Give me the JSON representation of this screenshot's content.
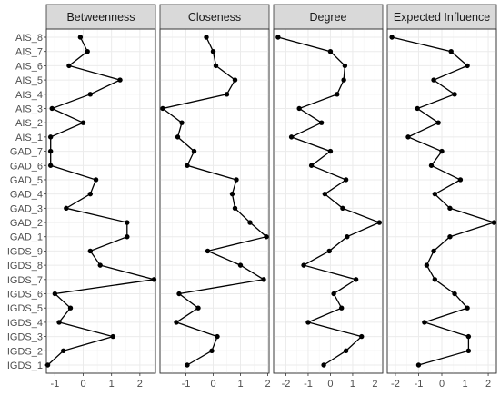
{
  "chart_data": {
    "type": "line",
    "layout": "faceted",
    "categories": [
      "IGDS_1",
      "IGDS_2",
      "IGDS_3",
      "IGDS_4",
      "IGDS_5",
      "IGDS_6",
      "IGDS_7",
      "IGDS_8",
      "IGDS_9",
      "GAD_1",
      "GAD_2",
      "GAD_3",
      "GAD_4",
      "GAD_5",
      "GAD_6",
      "GAD_7",
      "AIS_1",
      "AIS_2",
      "AIS_3",
      "AIS_4",
      "AIS_5",
      "AIS_6",
      "AIS_7",
      "AIS_8"
    ],
    "grid": true,
    "panels": [
      {
        "name": "Betweenness",
        "xlim": [
          -1.3,
          2.55
        ],
        "xticks": [
          -1,
          0,
          1,
          2
        ],
        "values": [
          -1.25,
          -0.7,
          1.05,
          -0.85,
          -0.45,
          -1.0,
          2.5,
          0.6,
          0.25,
          1.55,
          1.55,
          -0.6,
          0.25,
          0.45,
          -1.15,
          -1.15,
          -1.15,
          0.0,
          -1.1,
          0.25,
          1.3,
          -0.5,
          0.15,
          -0.1
        ]
      },
      {
        "name": "Closeness",
        "xlim": [
          -1.95,
          2.05
        ],
        "xticks": [
          -1,
          0,
          1,
          2
        ],
        "values": [
          -0.95,
          -0.05,
          0.15,
          -1.35,
          -0.55,
          -1.25,
          1.85,
          1.0,
          -0.2,
          1.95,
          1.35,
          0.8,
          0.7,
          0.85,
          -0.95,
          -0.7,
          -1.3,
          -1.15,
          -1.85,
          0.5,
          0.8,
          0.1,
          0.0,
          -0.25
        ]
      },
      {
        "name": "Degree",
        "xlim": [
          -2.55,
          2.35
        ],
        "xticks": [
          -2,
          -1,
          0,
          1,
          2
        ],
        "values": [
          -0.3,
          0.7,
          1.4,
          -1.0,
          0.5,
          0.15,
          1.15,
          -1.2,
          -0.05,
          0.75,
          2.2,
          0.55,
          -0.25,
          0.7,
          -0.85,
          0.0,
          -1.75,
          -0.4,
          -1.4,
          0.3,
          0.6,
          0.65,
          0.0,
          -2.35
        ]
      },
      {
        "name": "Expected Influence",
        "xlim": [
          -2.35,
          2.35
        ],
        "xticks": [
          -2,
          -1,
          0,
          1,
          2
        ],
        "values": [
          -1.0,
          1.15,
          1.15,
          -0.75,
          1.1,
          0.55,
          -0.3,
          -0.65,
          -0.35,
          0.35,
          2.25,
          0.35,
          -0.3,
          0.8,
          -0.45,
          0.0,
          -1.45,
          -0.15,
          -1.05,
          0.55,
          -0.35,
          1.1,
          0.4,
          -2.15
        ]
      }
    ]
  }
}
